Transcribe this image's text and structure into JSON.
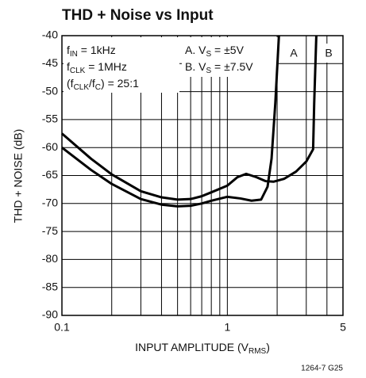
{
  "chart_data": {
    "type": "line",
    "title": "THD + Noise vs Input",
    "ylabel": "THD + NOISE (dB)",
    "xlabel": [
      "INPUT AMPLITUDE (V",
      "RMS",
      ")"
    ],
    "xscale": "log",
    "xlim": [
      0.1,
      5
    ],
    "xticks": [
      0.1,
      1,
      5
    ],
    "xgrid": [
      0.2,
      0.3,
      0.4,
      0.5,
      0.6,
      0.7,
      0.8,
      0.9,
      2,
      3,
      4
    ],
    "ylim": [
      -90,
      -40
    ],
    "yticks": [
      -90,
      -85,
      -80,
      -75,
      -70,
      -65,
      -60,
      -55,
      -50,
      -45,
      -40
    ],
    "grid": true,
    "annotations": [
      [
        "f",
        "IN",
        " = 1kHz"
      ],
      [
        "f",
        "CLK",
        " = 1MHz"
      ],
      [
        "(f",
        "CLK",
        "/f",
        "C",
        ") = 25:1"
      ],
      [
        "A. V",
        "S",
        " = ±5V"
      ],
      [
        "B. V",
        "S",
        " = ±7.5V"
      ]
    ],
    "footnote": "1264-7 G25",
    "series": [
      {
        "name": "A",
        "color": "#000000",
        "x": [
          0.1,
          0.15,
          0.2,
          0.3,
          0.4,
          0.5,
          0.6,
          0.7,
          0.8,
          1,
          1.2,
          1.4,
          1.6,
          1.75,
          1.85,
          1.95,
          2.05
        ],
        "values": [
          -60,
          -64,
          -66.5,
          -69.2,
          -70.2,
          -70.5,
          -70.4,
          -70,
          -69.5,
          -68.8,
          -69.1,
          -69.5,
          -69.3,
          -67,
          -62,
          -52,
          -40
        ]
      },
      {
        "name": "B",
        "color": "#000000",
        "x": [
          0.1,
          0.15,
          0.2,
          0.3,
          0.4,
          0.5,
          0.6,
          0.7,
          0.8,
          1,
          1.15,
          1.3,
          1.5,
          1.7,
          1.9,
          2.2,
          2.6,
          3,
          3.3,
          3.35,
          3.45
        ],
        "values": [
          -57.5,
          -62,
          -64.8,
          -67.8,
          -68.9,
          -69.3,
          -69.2,
          -68.7,
          -68,
          -66.8,
          -65.3,
          -64.7,
          -65.3,
          -66,
          -66.1,
          -65.6,
          -64.3,
          -62.5,
          -60.3,
          -52,
          -40
        ]
      }
    ]
  }
}
